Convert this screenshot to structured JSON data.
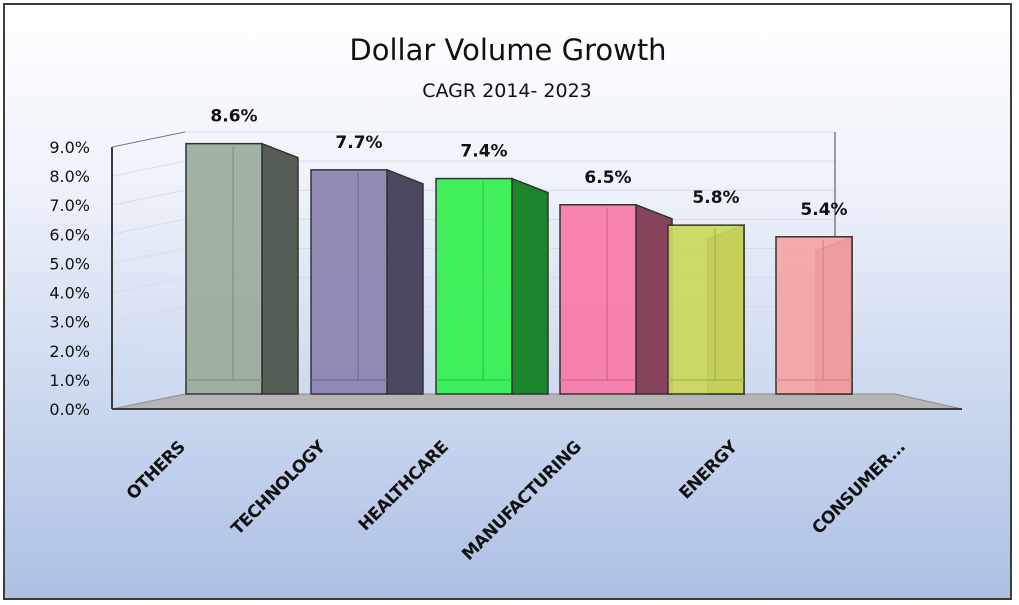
{
  "chart_data": {
    "type": "bar",
    "title": "Dollar Volume Growth",
    "subtitle": "CAGR 2014- 2023",
    "categories": [
      "OTHERS",
      "TECHNOLOGY",
      "HEALTHCARE",
      "MANUFACTURING",
      "ENERGY",
      "CONSUMER..."
    ],
    "values": [
      8.6,
      7.7,
      7.4,
      6.5,
      5.8,
      5.4
    ],
    "data_labels": [
      "8.6%",
      "7.7%",
      "7.4%",
      "6.5%",
      "5.8%",
      "5.4%"
    ],
    "colors": [
      "#9aab9a",
      "#8a82b0",
      "#33f04f",
      "#f77aa8",
      "#cbd85c",
      "#f5a3a3"
    ],
    "y_ticks": [
      "0.0%",
      "1.0%",
      "2.0%",
      "3.0%",
      "4.0%",
      "5.0%",
      "6.0%",
      "7.0%",
      "8.0%",
      "9.0%"
    ],
    "ylim": [
      0,
      9
    ],
    "grid": true,
    "style": "3d-column",
    "legend": "none"
  }
}
